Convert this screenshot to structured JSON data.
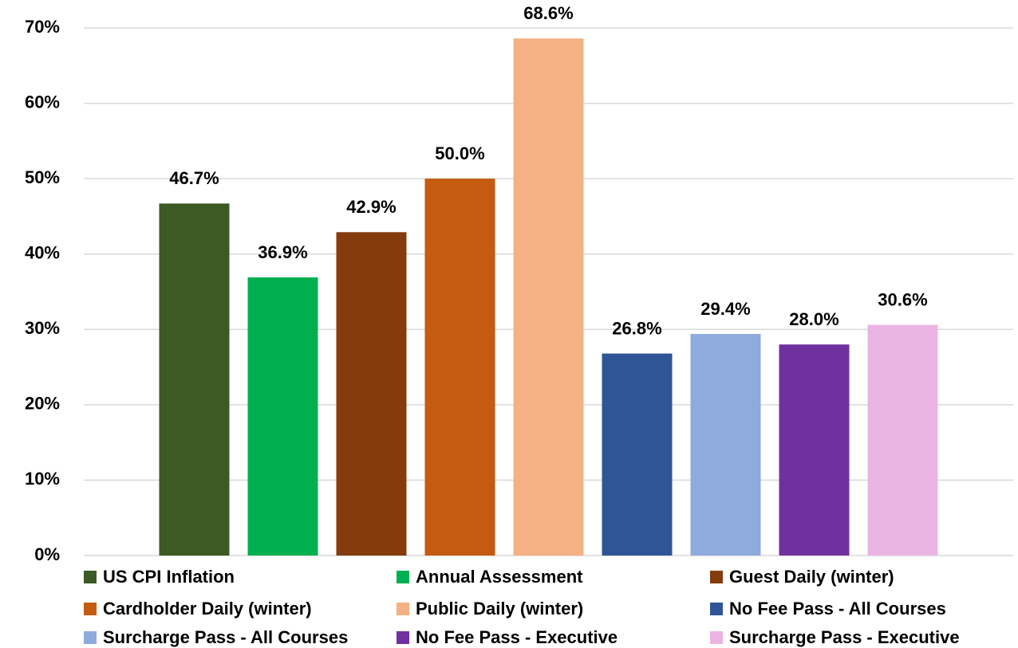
{
  "chart_data": {
    "type": "bar",
    "ylim": [
      0,
      70
    ],
    "yticks": [
      {
        "value": 0,
        "label": "0%"
      },
      {
        "value": 10,
        "label": "10%"
      },
      {
        "value": 20,
        "label": "20%"
      },
      {
        "value": 30,
        "label": "30%"
      },
      {
        "value": 40,
        "label": "40%"
      },
      {
        "value": 50,
        "label": "50%"
      },
      {
        "value": 60,
        "label": "60%"
      },
      {
        "value": 70,
        "label": "70%"
      }
    ],
    "grid": true,
    "legend": "bottom",
    "series": [
      {
        "name": "US CPI Inflation",
        "color": "#3b5a24",
        "values": [
          46.7
        ],
        "value_labels": [
          "46.7%"
        ]
      },
      {
        "name": "Annual Assessment",
        "color": "#00b050",
        "values": [
          36.9
        ],
        "value_labels": [
          "36.9%"
        ]
      },
      {
        "name": "Guest Daily (winter)",
        "color": "#843c0c",
        "values": [
          42.9
        ],
        "value_labels": [
          "42.9%"
        ]
      },
      {
        "name": "Cardholder Daily (winter)",
        "color": "#c55a11",
        "values": [
          50.0
        ],
        "value_labels": [
          "50.0%"
        ]
      },
      {
        "name": "Public Daily (winter)",
        "color": "#f4b183",
        "values": [
          68.6
        ],
        "value_labels": [
          "68.6%"
        ]
      },
      {
        "name": "No Fee Pass - All Courses",
        "color": "#2f5597",
        "values": [
          26.8
        ],
        "value_labels": [
          "26.8%"
        ]
      },
      {
        "name": "Surcharge Pass - All Courses",
        "color": "#8faadc",
        "values": [
          29.4
        ],
        "value_labels": [
          "29.4%"
        ]
      },
      {
        "name": "No Fee Pass - Executive",
        "color": "#7030a0",
        "values": [
          28.0
        ],
        "value_labels": [
          "28.0%"
        ]
      },
      {
        "name": "Surcharge Pass - Executive",
        "color": "#ebb5e3",
        "values": [
          30.6
        ],
        "value_labels": [
          "30.6%"
        ]
      }
    ]
  }
}
